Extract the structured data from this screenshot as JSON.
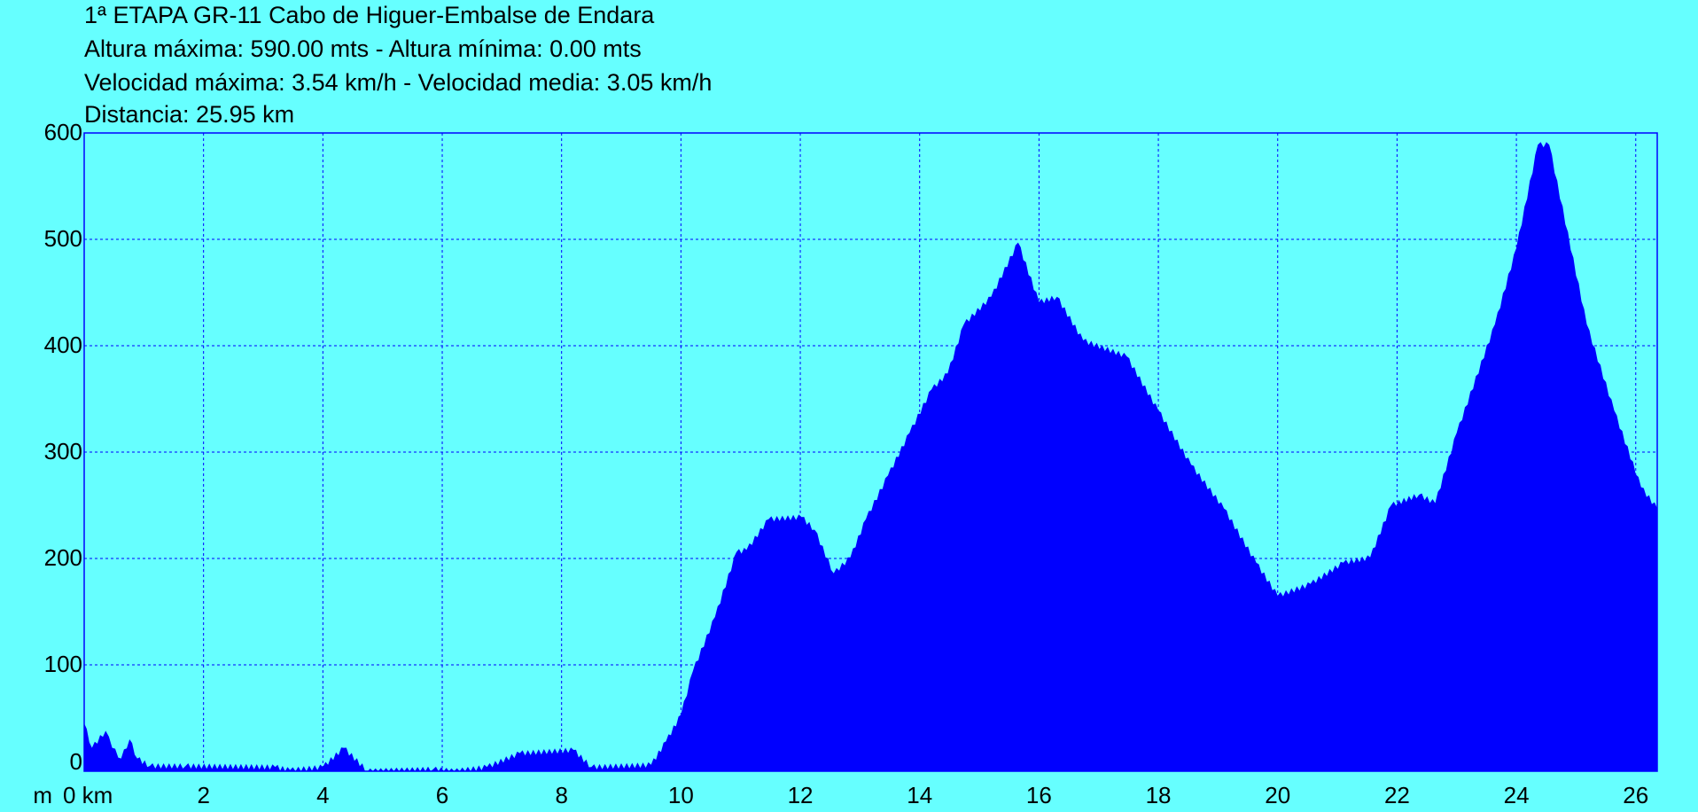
{
  "header": {
    "title": "1ª ETAPA GR-11 Cabo de Higuer-Embalse de Endara",
    "altitude": "Altura máxima: 590.00 mts - Altura mínima: 0.00 mts",
    "speed": "Velocidad máxima: 3.54 km/h - Velocidad media: 3.05 km/h",
    "distance": "Distancia: 25.95 km"
  },
  "colors": {
    "background": "#66FFFF",
    "fill": "#0000FF",
    "grid": "#0000FF"
  },
  "chart_data": {
    "type": "area",
    "title": "1ª ETAPA GR-11 Cabo de Higuer-Embalse de Endara",
    "xlabel": "km",
    "ylabel": "m",
    "xlim": [
      0,
      26.36
    ],
    "ylim": [
      0,
      600
    ],
    "grid": true,
    "x_ticks": [
      0,
      2,
      4,
      6,
      8,
      10,
      12,
      14,
      16,
      18,
      20,
      22,
      24,
      26
    ],
    "x_tick_labels": [
      "0 km",
      "2",
      "4",
      "6",
      "8",
      "10",
      "12",
      "14",
      "16",
      "18",
      "20",
      "22",
      "24",
      "26"
    ],
    "y_ticks": [
      0,
      100,
      200,
      300,
      400,
      500,
      600
    ],
    "y_tick_labels": [
      "0",
      "100",
      "200",
      "300",
      "400",
      "500",
      "600"
    ],
    "y_unit_label": "m",
    "points": [
      [
        0,
        45
      ],
      [
        0.13,
        22
      ],
      [
        0.36,
        38
      ],
      [
        0.47,
        22
      ],
      [
        0.62,
        12
      ],
      [
        0.76,
        30
      ],
      [
        0.89,
        12
      ],
      [
        1.1,
        5
      ],
      [
        1.7,
        5
      ],
      [
        3.2,
        4
      ],
      [
        3.45,
        1
      ],
      [
        4.0,
        4
      ],
      [
        4.35,
        22
      ],
      [
        4.75,
        0
      ],
      [
        5.85,
        2
      ],
      [
        6.2,
        0
      ],
      [
        6.75,
        4
      ],
      [
        7.3,
        17
      ],
      [
        8.2,
        20
      ],
      [
        8.5,
        4
      ],
      [
        9.5,
        6
      ],
      [
        9.75,
        28
      ],
      [
        10.0,
        53
      ],
      [
        10.2,
        94
      ],
      [
        10.57,
        145
      ],
      [
        10.93,
        206
      ],
      [
        11.1,
        208
      ],
      [
        11.47,
        237
      ],
      [
        12.02,
        239
      ],
      [
        12.24,
        227
      ],
      [
        12.56,
        186
      ],
      [
        12.84,
        201
      ],
      [
        13.1,
        237
      ],
      [
        13.47,
        278
      ],
      [
        13.83,
        318
      ],
      [
        14.2,
        359
      ],
      [
        14.47,
        374
      ],
      [
        14.74,
        420
      ],
      [
        15.2,
        446
      ],
      [
        15.65,
        497
      ],
      [
        16.0,
        441
      ],
      [
        16.3,
        446
      ],
      [
        16.74,
        405
      ],
      [
        17.47,
        390
      ],
      [
        18.0,
        339
      ],
      [
        18.55,
        288
      ],
      [
        19.1,
        247
      ],
      [
        19.64,
        196
      ],
      [
        20.0,
        165
      ],
      [
        20.55,
        176
      ],
      [
        21.1,
        196
      ],
      [
        21.55,
        201
      ],
      [
        21.9,
        250
      ],
      [
        22.37,
        260
      ],
      [
        22.64,
        252
      ],
      [
        23.0,
        318
      ],
      [
        23.64,
        420
      ],
      [
        24.0,
        492
      ],
      [
        24.36,
        589
      ],
      [
        24.55,
        589
      ],
      [
        25.18,
        420
      ],
      [
        25.64,
        339
      ],
      [
        26.09,
        267
      ],
      [
        26.36,
        247
      ]
    ]
  }
}
